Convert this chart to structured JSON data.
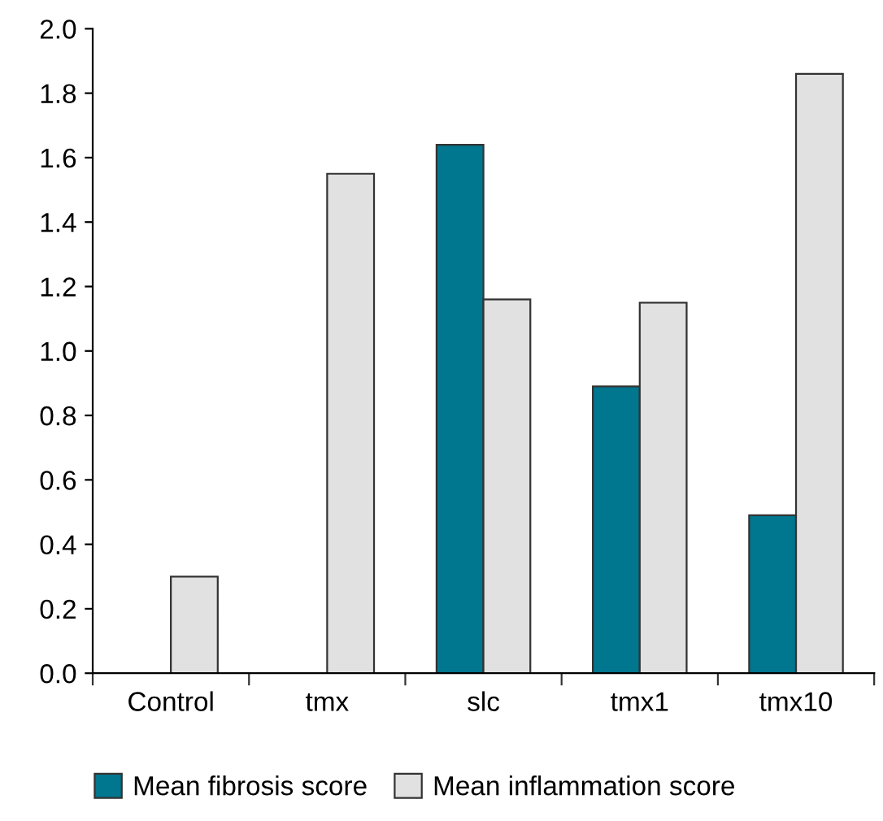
{
  "chart_data": {
    "type": "bar",
    "categories": [
      "Control",
      "tmx",
      "slc",
      "tmx1",
      "tmx10"
    ],
    "series": [
      {
        "name": "Mean fibrosis score",
        "color": "#00768f",
        "values": [
          null,
          null,
          1.64,
          0.89,
          0.49
        ]
      },
      {
        "name": "Mean inflammation score",
        "color": "#e1e1e1",
        "values": [
          0.3,
          1.55,
          1.16,
          1.15,
          1.86
        ]
      }
    ],
    "ylim": [
      0,
      2.0
    ],
    "yticks": [
      {
        "value": 0,
        "label": "0.0"
      },
      {
        "value": 0.2,
        "label": "0.2"
      },
      {
        "value": 0.4,
        "label": "0.4"
      },
      {
        "value": 0.6,
        "label": "0.6"
      },
      {
        "value": 0.8,
        "label": "0.8"
      },
      {
        "value": 1.0,
        "label": "1.0"
      },
      {
        "value": 1.2,
        "label": "1.2"
      },
      {
        "value": 1.4,
        "label": "1.4"
      },
      {
        "value": 1.6,
        "label": "1.6"
      },
      {
        "value": 1.8,
        "label": "1.8"
      },
      {
        "value": 2.0,
        "label": "2.0"
      }
    ],
    "grid": false,
    "legend": "bottom"
  }
}
